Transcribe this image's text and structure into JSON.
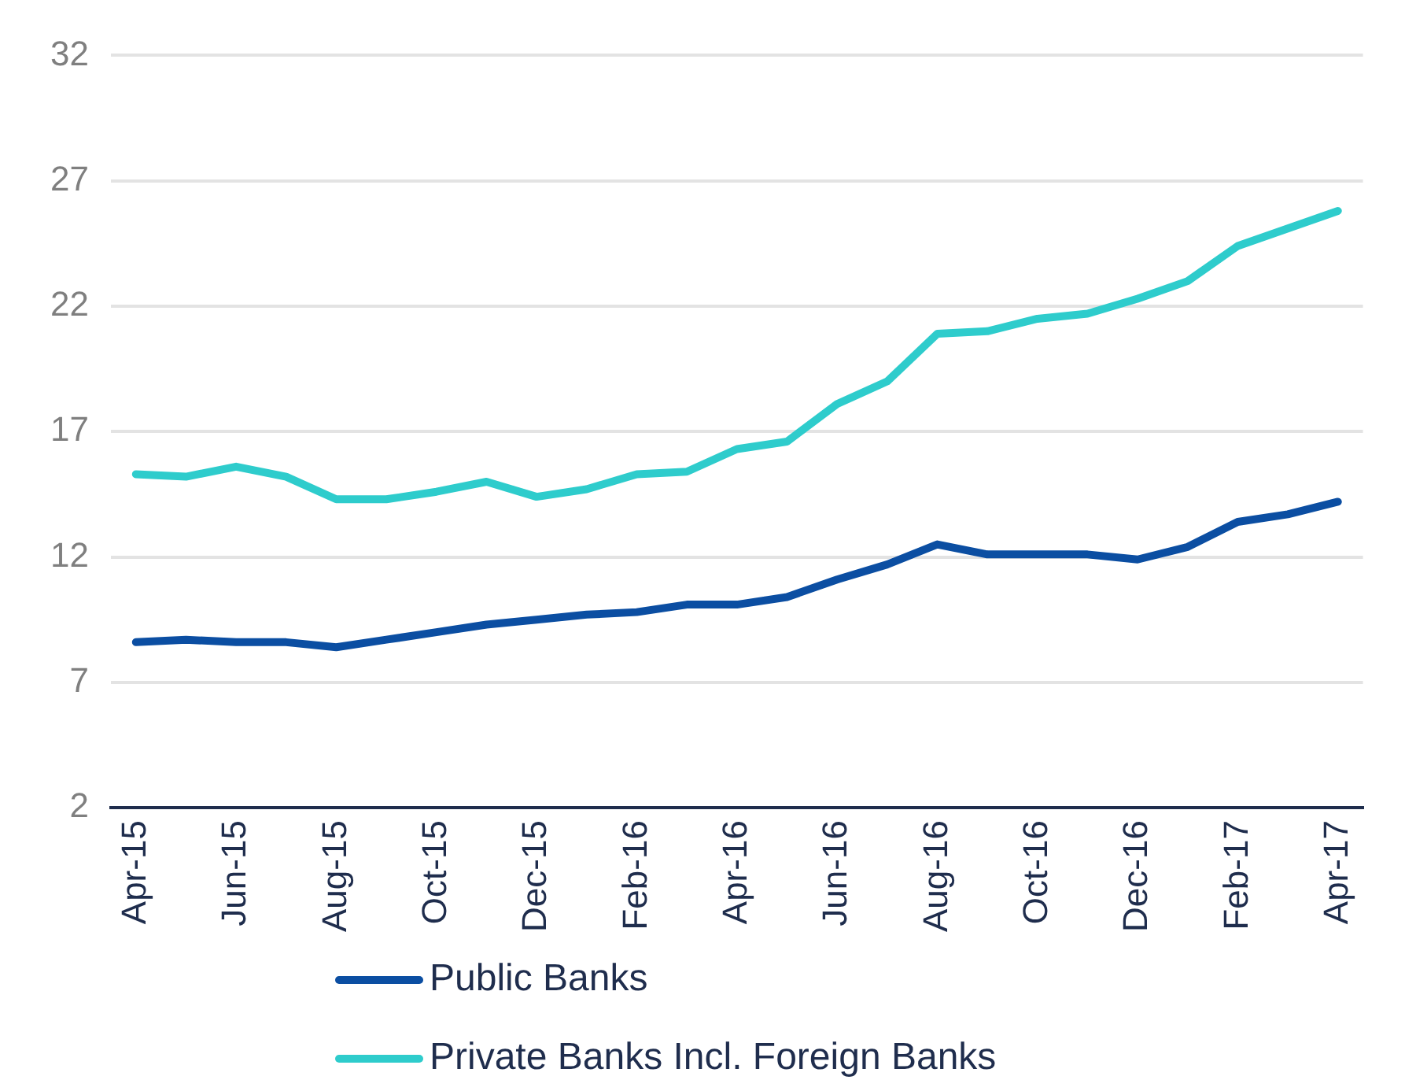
{
  "chart_data": {
    "type": "line",
    "categories": [
      "Apr-15",
      null,
      "Jun-15",
      null,
      "Aug-15",
      null,
      "Oct-15",
      null,
      "Dec-15",
      null,
      "Feb-16",
      null,
      "Apr-16",
      null,
      "Jun-16",
      null,
      "Aug-16",
      null,
      "Oct-16",
      null,
      "Dec-16",
      null,
      "Feb-17",
      null,
      "Apr-17"
    ],
    "series": [
      {
        "name": "Public Banks",
        "color": "#0b4ea2",
        "values": [
          8.6,
          8.7,
          8.6,
          8.6,
          8.4,
          8.7,
          9.0,
          9.3,
          9.5,
          9.7,
          9.8,
          10.1,
          10.1,
          10.4,
          11.1,
          11.7,
          12.5,
          12.1,
          12.1,
          12.1,
          11.9,
          12.4,
          13.4,
          13.7,
          14.2
        ]
      },
      {
        "name": "Private Banks Incl. Foreign Banks",
        "color": "#2ecccc",
        "values": [
          15.3,
          15.2,
          15.6,
          15.2,
          14.3,
          14.3,
          14.6,
          15.0,
          14.4,
          14.7,
          15.3,
          15.4,
          16.3,
          16.6,
          18.1,
          19.0,
          20.9,
          21.0,
          21.5,
          21.7,
          22.3,
          23.0,
          24.4,
          25.1,
          25.8
        ]
      }
    ],
    "ylim": [
      2,
      32
    ],
    "yticks": [
      2,
      7,
      12,
      17,
      22,
      27,
      32
    ],
    "grid": "y",
    "legend": "bottom",
    "marker": "none",
    "line_style": "solid"
  }
}
